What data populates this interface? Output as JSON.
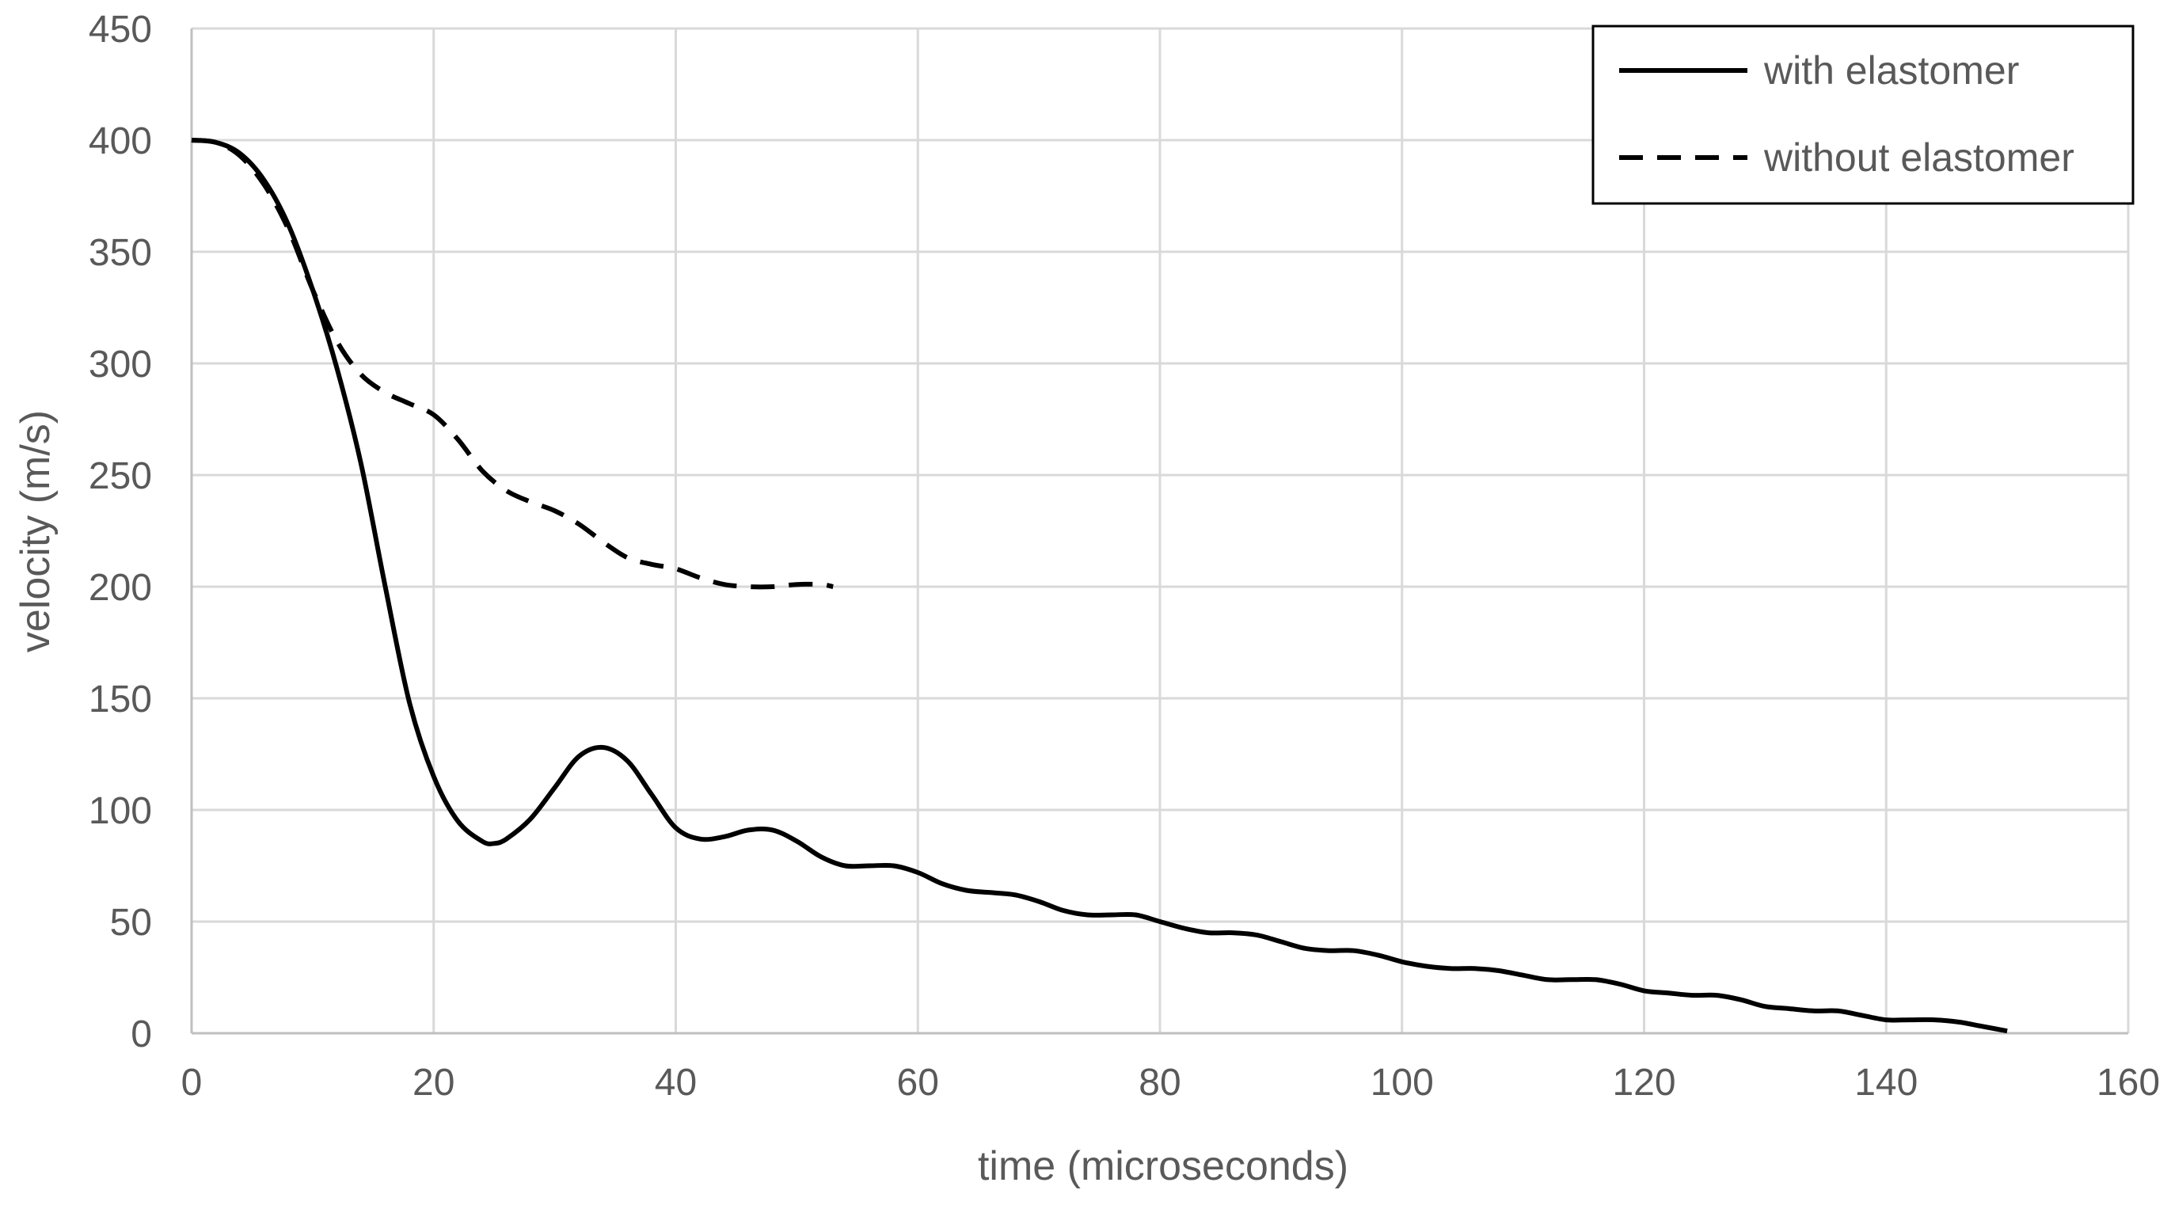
{
  "chart_data": {
    "type": "line",
    "title": "",
    "xlabel": "time (microseconds)",
    "ylabel": "velocity (m/s)",
    "xlim": [
      0,
      160
    ],
    "ylim": [
      0,
      450
    ],
    "xticks": [
      0,
      20,
      40,
      60,
      80,
      100,
      120,
      140,
      160
    ],
    "yticks": [
      0,
      50,
      100,
      150,
      200,
      250,
      300,
      350,
      400,
      450
    ],
    "grid": true,
    "legend_position": "top-right",
    "series": [
      {
        "name": "with elastomer",
        "style": "solid",
        "color": "#000000",
        "x": [
          0,
          2,
          4,
          6,
          8,
          10,
          12,
          14,
          16,
          18,
          20,
          22,
          24,
          25,
          26,
          28,
          30,
          32,
          34,
          36,
          38,
          40,
          42,
          44,
          46,
          48,
          50,
          52,
          54,
          56,
          58,
          60,
          62,
          64,
          66,
          68,
          70,
          72,
          74,
          76,
          78,
          80,
          82,
          84,
          86,
          88,
          90,
          92,
          94,
          96,
          98,
          100,
          102,
          104,
          106,
          108,
          110,
          112,
          114,
          116,
          118,
          120,
          122,
          124,
          126,
          128,
          130,
          132,
          134,
          136,
          138,
          140,
          142,
          144,
          146,
          148,
          150
        ],
        "y": [
          400,
          399,
          394,
          382,
          362,
          333,
          298,
          255,
          200,
          148,
          115,
          95,
          86,
          85,
          87,
          96,
          110,
          124,
          128,
          122,
          107,
          92,
          87,
          88,
          91,
          91,
          86,
          79,
          75,
          75,
          75,
          72,
          67,
          64,
          63,
          62,
          59,
          55,
          53,
          53,
          53,
          50,
          47,
          45,
          45,
          44,
          41,
          38,
          37,
          37,
          35,
          32,
          30,
          29,
          29,
          28,
          26,
          24,
          24,
          24,
          22,
          19,
          18,
          17,
          17,
          15,
          12,
          11,
          10,
          10,
          8,
          6,
          6,
          6,
          5,
          3,
          1
        ]
      },
      {
        "name": "without elastomer",
        "style": "dashed",
        "color": "#000000",
        "x": [
          0,
          2,
          4,
          6,
          8,
          10,
          12,
          14,
          16,
          18,
          20,
          22,
          24,
          26,
          28,
          30,
          32,
          34,
          36,
          38,
          40,
          42,
          44,
          46,
          48,
          50,
          52,
          53
        ],
        "y": [
          400,
          399,
          393,
          380,
          360,
          333,
          310,
          295,
          287,
          282,
          277,
          266,
          252,
          243,
          238,
          234,
          228,
          220,
          213,
          210,
          208,
          204,
          201,
          200,
          200,
          201,
          201,
          200
        ]
      }
    ]
  }
}
